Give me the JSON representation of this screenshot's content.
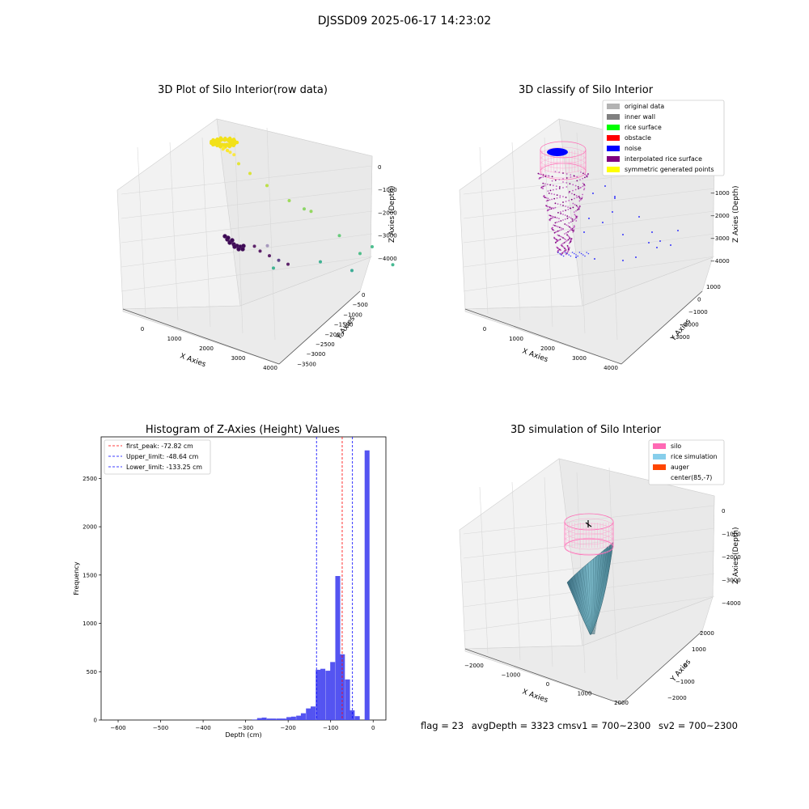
{
  "figure": {
    "title": "DJSSD09 2025-06-17 14:23:02"
  },
  "footer": {
    "flag": "flag = 23",
    "avg": "avgDepth = 3323 cmsv1 = 700~2300",
    "sv2": "sv2 = 700~2300"
  },
  "chart_data": [
    {
      "type": "scatter3d",
      "title": "3D Plot of Silo Interior(row data)",
      "xlabel": "X Axies",
      "ylabel": "Y Axies",
      "zlabel": "Z Axies (Depth)",
      "xticks": [
        "0",
        "1000",
        "2000",
        "3000",
        "4000"
      ],
      "yticks": [
        "0",
        "−500",
        "−1000",
        "−1500",
        "−2000",
        "−2500",
        "−3000",
        "−3500"
      ],
      "zticks": [
        "0",
        "−1000",
        "−2000",
        "−3000",
        "−4000"
      ],
      "grid": true,
      "points": [
        {
          "x": 200,
          "y": -100,
          "z": -300,
          "c": "#fde725"
        },
        {
          "x": 300,
          "y": -100,
          "z": -350,
          "c": "#fde725"
        },
        {
          "x": 250,
          "y": -200,
          "z": -320,
          "c": "#fde725"
        },
        {
          "x": 350,
          "y": -150,
          "z": -380,
          "c": "#fde725"
        },
        {
          "x": 150,
          "y": -150,
          "z": -330,
          "c": "#fde725"
        },
        {
          "x": 400,
          "y": -250,
          "z": -400,
          "c": "#fde725"
        },
        {
          "x": 500,
          "y": -300,
          "z": -700,
          "c": "#e2e418"
        },
        {
          "x": 700,
          "y": -500,
          "z": -900,
          "c": "#d8e219"
        },
        {
          "x": 1000,
          "y": -800,
          "z": -1100,
          "c": "#b5de2b"
        },
        {
          "x": 1500,
          "y": -1000,
          "z": -1400,
          "c": "#90d743"
        },
        {
          "x": 1800,
          "y": -1200,
          "z": -1500,
          "c": "#7ad151"
        },
        {
          "x": 2100,
          "y": -1000,
          "z": -1600,
          "c": "#86d549"
        },
        {
          "x": 2600,
          "y": -1500,
          "z": -2100,
          "c": "#52c569"
        },
        {
          "x": 3000,
          "y": -1800,
          "z": -2500,
          "c": "#35b779"
        },
        {
          "x": 3500,
          "y": -1500,
          "z": -2200,
          "c": "#2fb47c"
        },
        {
          "x": 3900,
          "y": -1800,
          "z": -2600,
          "c": "#28ae80"
        },
        {
          "x": 2500,
          "y": -2300,
          "z": -3100,
          "c": "#1fa187"
        },
        {
          "x": 1800,
          "y": -2000,
          "z": -3200,
          "c": "#22a884"
        },
        {
          "x": 900,
          "y": -1000,
          "z": -3500,
          "c": "#9a8ab5"
        },
        {
          "x": 600,
          "y": -900,
          "z": -3700,
          "c": "#440154"
        },
        {
          "x": 700,
          "y": -1000,
          "z": -3800,
          "c": "#440154"
        },
        {
          "x": 900,
          "y": -1100,
          "z": -3850,
          "c": "#440154"
        },
        {
          "x": 1100,
          "y": -1200,
          "z": -3900,
          "c": "#482878"
        },
        {
          "x": 1300,
          "y": -1300,
          "z": -3920,
          "c": "#440154"
        },
        {
          "x": 400,
          "y": -2200,
          "z": -3900,
          "c": "#25ab82"
        }
      ]
    },
    {
      "type": "scatter3d",
      "title": "3D classify of Silo Interior",
      "xlabel": "X Axies",
      "ylabel": "Y Axies",
      "zlabel": "Z Axies (Depth)",
      "xticks": [
        "0",
        "1000",
        "2000",
        "3000",
        "4000"
      ],
      "yticks": [
        "1000",
        "0",
        "−1000",
        "−2000",
        "−3000"
      ],
      "zticks": [
        "−1000",
        "−2000",
        "−3000",
        "−4000"
      ],
      "grid": true,
      "legend": {
        "position": "top-right",
        "entries": [
          {
            "label": "original data",
            "color": "#b3b3b3"
          },
          {
            "label": "inner wall",
            "color": "#808080"
          },
          {
            "label": "rice surface",
            "color": "#00ff00"
          },
          {
            "label": "obstacle",
            "color": "#ff0000"
          },
          {
            "label": "noise",
            "color": "#0000ff"
          },
          {
            "label": "interpolated rice surface",
            "color": "#800080"
          },
          {
            "label": "symmetric generated points",
            "color": "#ffff00"
          }
        ]
      }
    },
    {
      "type": "bar",
      "title": "Histogram of Z-Axies (Height) Values",
      "xlabel": "Depth (cm)",
      "ylabel": "Frequency",
      "xlim": [
        -640,
        30
      ],
      "ylim": [
        0,
        2930
      ],
      "xticks": [
        -600,
        -500,
        -400,
        -300,
        -200,
        -100,
        0
      ],
      "yticks": [
        0,
        500,
        1000,
        1500,
        2000,
        2500
      ],
      "bin_width": 11.5,
      "bar_color": "#4b4bf0",
      "bins": [
        {
          "start": -285,
          "count": 5
        },
        {
          "start": -273,
          "count": 20
        },
        {
          "start": -262,
          "count": 25
        },
        {
          "start": -250,
          "count": 15
        },
        {
          "start": -239,
          "count": 15
        },
        {
          "start": -227,
          "count": 15
        },
        {
          "start": -216,
          "count": 15
        },
        {
          "start": -204,
          "count": 30
        },
        {
          "start": -193,
          "count": 35
        },
        {
          "start": -181,
          "count": 45
        },
        {
          "start": -170,
          "count": 70
        },
        {
          "start": -158,
          "count": 120
        },
        {
          "start": -147,
          "count": 140
        },
        {
          "start": -135,
          "count": 520
        },
        {
          "start": -124,
          "count": 530
        },
        {
          "start": -112,
          "count": 510
        },
        {
          "start": -101,
          "count": 600
        },
        {
          "start": -89,
          "count": 1490
        },
        {
          "start": -78,
          "count": 680
        },
        {
          "start": -66,
          "count": 420
        },
        {
          "start": -55,
          "count": 100
        },
        {
          "start": -43,
          "count": 40
        },
        {
          "start": -20,
          "count": 2790
        }
      ],
      "vlines": [
        {
          "label": "first_peak: -72.82 cm",
          "value": -72.82,
          "color": "#ff0000"
        },
        {
          "label": "Upper_limit: -48.64 cm",
          "value": -48.64,
          "color": "#0000ff"
        },
        {
          "label": "Lower_limit: -133.25 cm",
          "value": -133.25,
          "color": "#0000ff"
        }
      ],
      "legend_position": "upper-left"
    },
    {
      "type": "surface3d",
      "title": "3D simulation of Silo Interior",
      "xlabel": "X Axies",
      "ylabel": "Y Axies",
      "zlabel": "Z Axies (Depth)",
      "xticks": [
        "−2000",
        "−1000",
        "0",
        "1000",
        "2000"
      ],
      "yticks": [
        "2000",
        "1000",
        "0",
        "−1000",
        "−2000"
      ],
      "zticks": [
        "0",
        "−1000",
        "−2000",
        "−3000",
        "−4000"
      ],
      "grid": true,
      "legend": {
        "position": "top-right",
        "entries": [
          {
            "label": "silo",
            "color": "#ff69b4"
          },
          {
            "label": "rice simulation",
            "color": "#87ceeb"
          },
          {
            "label": "auger",
            "color": "#ff4500"
          },
          {
            "label": "center(85,-7)",
            "color": "#ffffff"
          }
        ]
      }
    }
  ]
}
